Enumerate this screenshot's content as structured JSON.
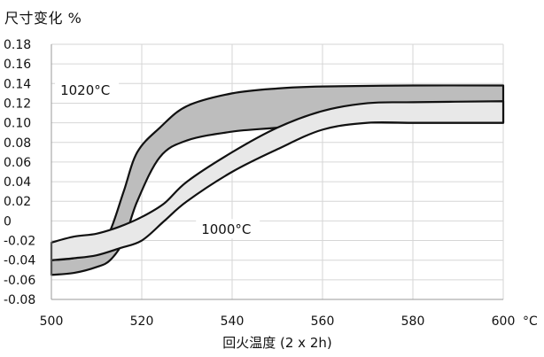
{
  "chart_data": {
    "type": "area",
    "ylabel": "尺寸变化 %",
    "xlabel": "回火温度 (2 x 2h)",
    "x_unit": "°C",
    "xlim": [
      500,
      600
    ],
    "ylim": [
      -0.08,
      0.18
    ],
    "x_ticks": [
      "500",
      "520",
      "540",
      "560",
      "580",
      "600"
    ],
    "y_ticks": [
      "0.18",
      "0.16",
      "0.14",
      "0.12",
      "0.10",
      "0.08",
      "0.06",
      "0.04",
      "0.02",
      "0",
      "-0.02",
      "-0.04",
      "-0.06",
      "-0.08"
    ],
    "grid": true,
    "series": [
      {
        "name": "1020°C",
        "color": "#bdbdbd",
        "x": [
          500,
          505,
          510,
          513,
          516,
          519,
          524,
          530,
          540,
          550,
          560,
          580,
          600
        ],
        "upper": [
          -0.04,
          -0.038,
          -0.03,
          -0.01,
          0.03,
          0.07,
          0.095,
          0.117,
          0.13,
          0.135,
          0.137,
          0.138,
          0.138
        ],
        "lower": [
          -0.055,
          -0.053,
          -0.047,
          -0.04,
          -0.02,
          0.02,
          0.065,
          0.082,
          0.091,
          0.095,
          0.1,
          0.1,
          0.1
        ]
      },
      {
        "name": "1000°C",
        "color": "#e8e8e8",
        "x": [
          500,
          505,
          510,
          515,
          520,
          525,
          530,
          540,
          550,
          560,
          570,
          580,
          600
        ],
        "upper": [
          -0.022,
          -0.016,
          -0.013,
          -0.006,
          0.004,
          0.018,
          0.04,
          0.07,
          0.095,
          0.112,
          0.12,
          0.121,
          0.122
        ],
        "lower": [
          -0.04,
          -0.038,
          -0.035,
          -0.028,
          -0.02,
          0.0,
          0.02,
          0.05,
          0.073,
          0.093,
          0.1,
          0.1,
          0.1
        ]
      }
    ],
    "annotations": [
      "1020°C",
      "1000°C"
    ]
  }
}
